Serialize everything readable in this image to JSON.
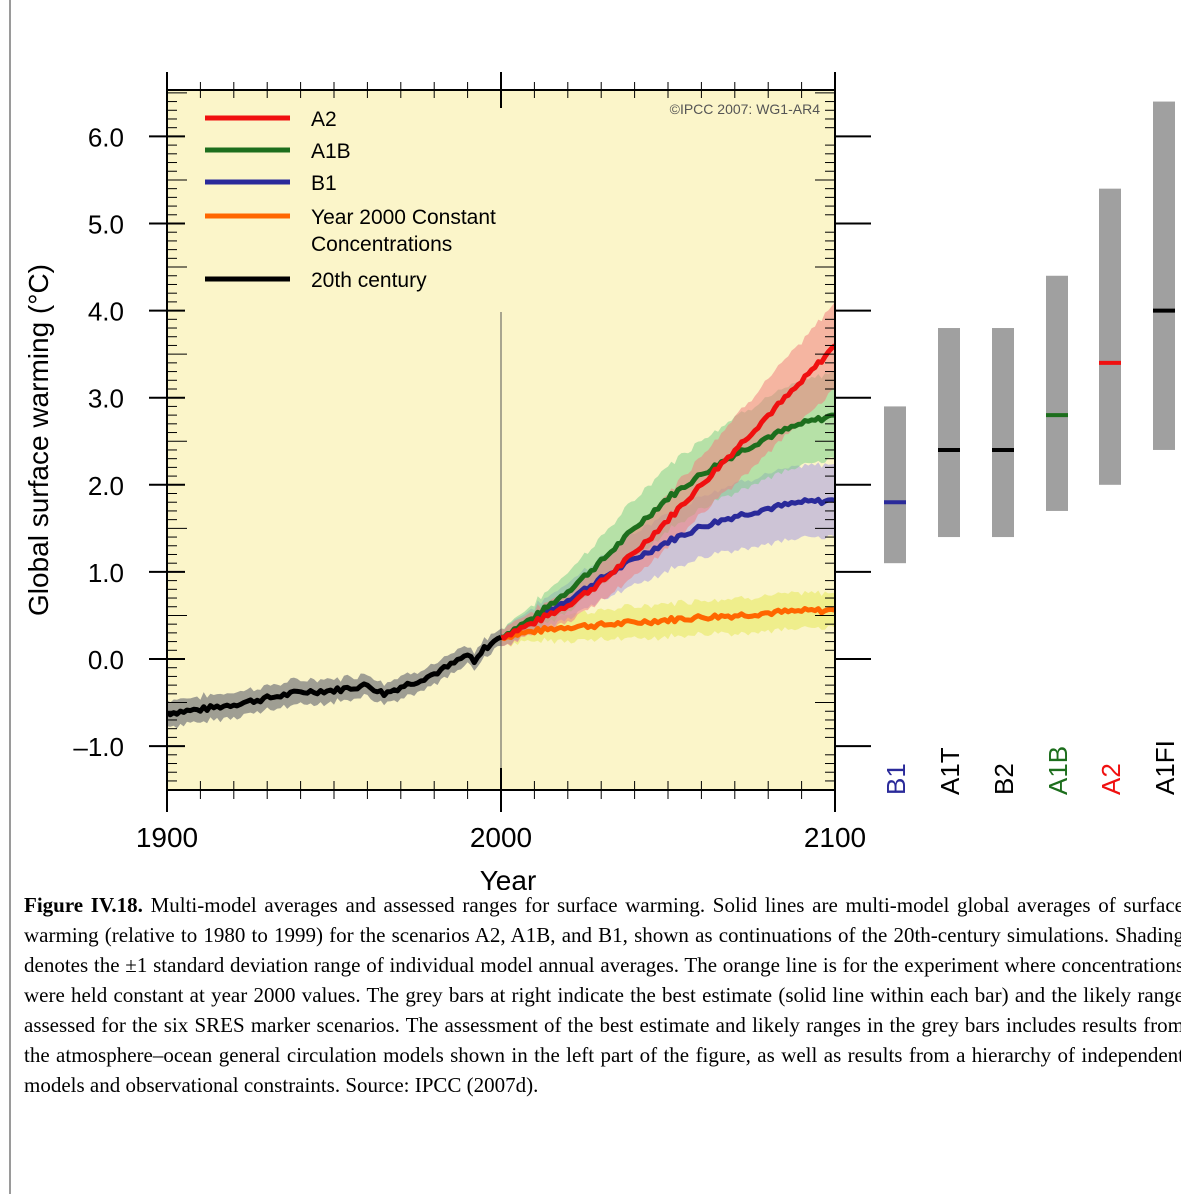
{
  "chart_data": [
    {
      "type": "line",
      "title": "",
      "xlabel": "Year",
      "ylabel": "Global surface warming (°C)",
      "xlim": [
        1900,
        2100
      ],
      "ylim": [
        -1.5,
        6.6
      ],
      "x_ticks": [
        1900,
        2000,
        2100
      ],
      "y_ticks": [
        -1.0,
        0.0,
        1.0,
        2.0,
        3.0,
        4.0,
        5.0,
        6.0
      ],
      "y_tick_labels": [
        "–1.0",
        "0.0",
        "1.0",
        "2.0",
        "3.0",
        "4.0",
        "5.0",
        "6.0"
      ],
      "background_color": "#fbf5c9",
      "credit": "©IPCC 2007: WG1-AR4",
      "legend_position": "top-left",
      "series": [
        {
          "name": "A2",
          "color": "#f01010",
          "shade": "#f08080",
          "x": [
            2000,
            2010,
            2020,
            2030,
            2040,
            2050,
            2060,
            2070,
            2080,
            2090,
            2100
          ],
          "y": [
            0.25,
            0.42,
            0.62,
            0.88,
            1.22,
            1.6,
            2.0,
            2.4,
            2.8,
            3.18,
            3.6
          ],
          "sd": [
            0.1,
            0.14,
            0.18,
            0.22,
            0.27,
            0.3,
            0.34,
            0.38,
            0.42,
            0.45,
            0.5
          ]
        },
        {
          "name": "A1B",
          "color": "#1d6e1d",
          "shade": "#7dd08a",
          "x": [
            2000,
            2010,
            2020,
            2030,
            2040,
            2050,
            2060,
            2070,
            2080,
            2090,
            2100
          ],
          "y": [
            0.25,
            0.48,
            0.78,
            1.12,
            1.5,
            1.85,
            2.12,
            2.35,
            2.55,
            2.7,
            2.8
          ],
          "sd": [
            0.1,
            0.16,
            0.22,
            0.28,
            0.33,
            0.37,
            0.4,
            0.43,
            0.46,
            0.48,
            0.5
          ]
        },
        {
          "name": "B1",
          "color": "#2a2a9a",
          "shade": "#a79ae0",
          "x": [
            2000,
            2010,
            2020,
            2030,
            2040,
            2050,
            2060,
            2070,
            2080,
            2090,
            2100
          ],
          "y": [
            0.25,
            0.45,
            0.68,
            0.92,
            1.15,
            1.35,
            1.52,
            1.64,
            1.73,
            1.8,
            1.82
          ],
          "sd": [
            0.1,
            0.15,
            0.2,
            0.25,
            0.3,
            0.33,
            0.36,
            0.38,
            0.4,
            0.41,
            0.42
          ]
        },
        {
          "name": "Year 2000 Constant Concentrations",
          "color": "#ff6600",
          "shade": "#e5e85a",
          "x": [
            2000,
            2010,
            2020,
            2030,
            2040,
            2050,
            2060,
            2070,
            2080,
            2090,
            2100
          ],
          "y": [
            0.25,
            0.32,
            0.37,
            0.39,
            0.42,
            0.45,
            0.48,
            0.5,
            0.53,
            0.55,
            0.56
          ],
          "sd": [
            0.08,
            0.12,
            0.15,
            0.17,
            0.18,
            0.19,
            0.2,
            0.2,
            0.2,
            0.2,
            0.2
          ]
        },
        {
          "name": "20th century",
          "color": "#000000",
          "shade": "#808080",
          "x": [
            1900,
            1910,
            1920,
            1930,
            1940,
            1950,
            1960,
            1965,
            1970,
            1975,
            1980,
            1985,
            1990,
            1992,
            1995,
            2000
          ],
          "y": [
            -0.62,
            -0.58,
            -0.52,
            -0.45,
            -0.38,
            -0.36,
            -0.3,
            -0.4,
            -0.32,
            -0.25,
            -0.17,
            -0.07,
            0.05,
            -0.05,
            0.12,
            0.25
          ],
          "sd": [
            0.15,
            0.15,
            0.14,
            0.14,
            0.14,
            0.13,
            0.13,
            0.13,
            0.12,
            0.12,
            0.11,
            0.11,
            0.1,
            0.1,
            0.1,
            0.1
          ]
        }
      ]
    },
    {
      "type": "bar",
      "title": "",
      "categories": [
        "B1",
        "A1T",
        "B2",
        "A1B",
        "A2",
        "A1FI"
      ],
      "category_colors": [
        "#2a2a9a",
        "#000000",
        "#000000",
        "#1d6e1d",
        "#f01010",
        "#000000"
      ],
      "likely_range_low": [
        1.1,
        1.4,
        1.4,
        1.7,
        2.0,
        2.4
      ],
      "likely_range_high": [
        2.9,
        3.8,
        3.8,
        4.4,
        5.4,
        6.4
      ],
      "best_estimate": [
        1.8,
        2.4,
        2.4,
        2.8,
        3.4,
        4.0
      ],
      "bar_color": "#a0a0a0",
      "ylim": [
        -1.5,
        6.6
      ]
    }
  ],
  "legend": [
    {
      "label": "A2",
      "color": "#f01010"
    },
    {
      "label": "A1B",
      "color": "#1d6e1d"
    },
    {
      "label": "B1",
      "color": "#2a2a9a"
    },
    {
      "label": "Year 2000 Constant",
      "label2": "Concentrations",
      "color": "#ff6600"
    },
    {
      "label": "20th century",
      "color": "#000000"
    }
  ],
  "caption": {
    "label": "Figure IV.18.",
    "text": " Multi-model averages and assessed ranges for surface warming. Solid lines are multi-model global averages of surface warming (relative to 1980 to 1999) for the scenarios A2, A1B, and B1, shown as continuations of the 20th-century simulations. Shading denotes the ±1 standard deviation range of individual model annual averages. The orange line is for the experiment where concentrations were held constant at year 2000 values. The grey bars at right indicate the best estimate (solid line within each bar) and the likely range assessed for the six SRES marker scenarios. The assessment of the best estimate and likely ranges in the grey bars includes results from the atmosphere–ocean general circulation models shown in the left part of the figure, as well as results from a hierarchy of independent models and observational constraints. Source: IPCC (2007d)."
  }
}
